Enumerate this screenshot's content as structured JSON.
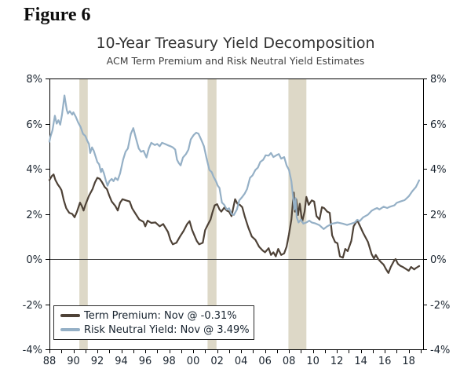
{
  "figure_label": "Figure 6",
  "colors": {
    "background": "#ffffff",
    "recession_band": "#ddd8c7",
    "axis": "#000000",
    "zero_line": "#3a3a3a",
    "tick_label": "#1b2530",
    "title": "#333333",
    "subtitle": "#404040",
    "legend_text": "#16222e",
    "term_premium": "#4e4237",
    "risk_neutral": "#95b0c6"
  },
  "chart_data": {
    "type": "line",
    "title": "10-Year Treasury Yield Decomposition",
    "subtitle": "ACM Term Premium and Risk Neutral Yield Estimates",
    "xlabel": "",
    "ylabel": "",
    "xlim": [
      1988,
      2019.2
    ],
    "ylim": [
      -4,
      8
    ],
    "grid": false,
    "zero_line": true,
    "legend_position": "bottom-left",
    "y_ticks": [
      8,
      6,
      4,
      2,
      0,
      -2,
      -4
    ],
    "y_tick_suffix": "%",
    "x_ticks": [
      {
        "year": 1988,
        "label": "88"
      },
      {
        "year": 1990,
        "label": "90"
      },
      {
        "year": 1992,
        "label": "92"
      },
      {
        "year": 1994,
        "label": "94"
      },
      {
        "year": 1996,
        "label": "96"
      },
      {
        "year": 1998,
        "label": "98"
      },
      {
        "year": 2000,
        "label": "00"
      },
      {
        "year": 2002,
        "label": "02"
      },
      {
        "year": 2004,
        "label": "04"
      },
      {
        "year": 2006,
        "label": "06"
      },
      {
        "year": 2008,
        "label": "08"
      },
      {
        "year": 2010,
        "label": "10"
      },
      {
        "year": 2012,
        "label": "12"
      },
      {
        "year": 2014,
        "label": "14"
      },
      {
        "year": 2016,
        "label": "16"
      },
      {
        "year": 2018,
        "label": "18"
      }
    ],
    "recession_bands": [
      [
        1990.5,
        1991.2
      ],
      [
        2001.2,
        2001.95
      ],
      [
        2007.95,
        2009.45
      ]
    ],
    "series": [
      {
        "name": "Term Premium",
        "legend_label": "Term Premium: Nov @ -0.31%",
        "color": "#4e4237",
        "points": [
          [
            1988.0,
            3.5
          ],
          [
            1988.2,
            3.68
          ],
          [
            1988.35,
            3.75
          ],
          [
            1988.5,
            3.5
          ],
          [
            1988.7,
            3.3
          ],
          [
            1988.9,
            3.15
          ],
          [
            1989.0,
            3.05
          ],
          [
            1989.2,
            2.6
          ],
          [
            1989.4,
            2.25
          ],
          [
            1989.65,
            2.05
          ],
          [
            1989.9,
            2.0
          ],
          [
            1990.1,
            1.85
          ],
          [
            1990.3,
            2.1
          ],
          [
            1990.55,
            2.5
          ],
          [
            1990.7,
            2.35
          ],
          [
            1990.85,
            2.15
          ],
          [
            1991.0,
            2.4
          ],
          [
            1991.3,
            2.8
          ],
          [
            1991.6,
            3.1
          ],
          [
            1991.8,
            3.4
          ],
          [
            1992.0,
            3.6
          ],
          [
            1992.2,
            3.55
          ],
          [
            1992.4,
            3.4
          ],
          [
            1992.6,
            3.2
          ],
          [
            1992.8,
            3.1
          ],
          [
            1993.0,
            2.8
          ],
          [
            1993.2,
            2.55
          ],
          [
            1993.5,
            2.35
          ],
          [
            1993.7,
            2.15
          ],
          [
            1993.9,
            2.5
          ],
          [
            1994.1,
            2.65
          ],
          [
            1994.4,
            2.6
          ],
          [
            1994.7,
            2.55
          ],
          [
            1994.9,
            2.25
          ],
          [
            1995.2,
            2.0
          ],
          [
            1995.5,
            1.75
          ],
          [
            1995.85,
            1.65
          ],
          [
            1996.0,
            1.45
          ],
          [
            1996.2,
            1.7
          ],
          [
            1996.5,
            1.6
          ],
          [
            1996.85,
            1.62
          ],
          [
            1997.2,
            1.45
          ],
          [
            1997.5,
            1.55
          ],
          [
            1997.9,
            1.2
          ],
          [
            1998.1,
            0.85
          ],
          [
            1998.3,
            0.65
          ],
          [
            1998.6,
            0.72
          ],
          [
            1998.9,
            1.0
          ],
          [
            1999.2,
            1.25
          ],
          [
            1999.5,
            1.55
          ],
          [
            1999.7,
            1.68
          ],
          [
            1999.9,
            1.3
          ],
          [
            2000.1,
            1.05
          ],
          [
            2000.3,
            0.8
          ],
          [
            2000.5,
            0.65
          ],
          [
            2000.8,
            0.72
          ],
          [
            2001.0,
            1.28
          ],
          [
            2001.2,
            1.5
          ],
          [
            2001.45,
            1.75
          ],
          [
            2001.6,
            2.05
          ],
          [
            2001.8,
            2.38
          ],
          [
            2002.0,
            2.43
          ],
          [
            2002.2,
            2.2
          ],
          [
            2002.35,
            2.1
          ],
          [
            2002.6,
            2.28
          ],
          [
            2002.8,
            2.15
          ],
          [
            2003.0,
            2.1
          ],
          [
            2003.2,
            1.9
          ],
          [
            2003.5,
            2.65
          ],
          [
            2003.7,
            2.45
          ],
          [
            2003.9,
            2.4
          ],
          [
            2004.1,
            2.3
          ],
          [
            2004.3,
            1.9
          ],
          [
            2004.6,
            1.4
          ],
          [
            2004.9,
            1.0
          ],
          [
            2005.2,
            0.85
          ],
          [
            2005.5,
            0.55
          ],
          [
            2005.8,
            0.38
          ],
          [
            2006.0,
            0.3
          ],
          [
            2006.3,
            0.48
          ],
          [
            2006.5,
            0.18
          ],
          [
            2006.7,
            0.3
          ],
          [
            2006.9,
            0.12
          ],
          [
            2007.1,
            0.45
          ],
          [
            2007.35,
            0.18
          ],
          [
            2007.6,
            0.25
          ],
          [
            2007.8,
            0.55
          ],
          [
            2008.0,
            1.1
          ],
          [
            2008.2,
            1.75
          ],
          [
            2008.4,
            2.95
          ],
          [
            2008.5,
            2.1
          ],
          [
            2008.6,
            2.65
          ],
          [
            2008.75,
            1.95
          ],
          [
            2008.9,
            2.45
          ],
          [
            2009.1,
            1.65
          ],
          [
            2009.3,
            2.1
          ],
          [
            2009.45,
            2.75
          ],
          [
            2009.65,
            2.4
          ],
          [
            2009.9,
            2.6
          ],
          [
            2010.1,
            2.55
          ],
          [
            2010.3,
            1.9
          ],
          [
            2010.55,
            1.75
          ],
          [
            2010.75,
            2.3
          ],
          [
            2010.95,
            2.25
          ],
          [
            2011.2,
            2.1
          ],
          [
            2011.4,
            2.05
          ],
          [
            2011.6,
            1.05
          ],
          [
            2011.85,
            0.75
          ],
          [
            2012.05,
            0.7
          ],
          [
            2012.25,
            0.12
          ],
          [
            2012.5,
            0.06
          ],
          [
            2012.7,
            0.45
          ],
          [
            2012.9,
            0.35
          ],
          [
            2013.2,
            0.8
          ],
          [
            2013.4,
            1.45
          ],
          [
            2013.7,
            1.72
          ],
          [
            2013.9,
            1.5
          ],
          [
            2014.2,
            1.15
          ],
          [
            2014.6,
            0.75
          ],
          [
            2014.9,
            0.22
          ],
          [
            2015.1,
            0.02
          ],
          [
            2015.25,
            0.18
          ],
          [
            2015.45,
            0.0
          ],
          [
            2015.65,
            -0.12
          ],
          [
            2015.9,
            -0.25
          ],
          [
            2016.1,
            -0.45
          ],
          [
            2016.3,
            -0.62
          ],
          [
            2016.5,
            -0.35
          ],
          [
            2016.8,
            -0.05
          ],
          [
            2016.9,
            0.0
          ],
          [
            2017.1,
            -0.22
          ],
          [
            2017.3,
            -0.3
          ],
          [
            2017.5,
            -0.35
          ],
          [
            2017.8,
            -0.45
          ],
          [
            2018.0,
            -0.52
          ],
          [
            2018.2,
            -0.35
          ],
          [
            2018.45,
            -0.46
          ],
          [
            2018.6,
            -0.4
          ],
          [
            2018.87,
            -0.31
          ]
        ]
      },
      {
        "name": "Risk Neutral Yield",
        "legend_label": "Risk Neutral Yield: Nov @ 3.49%",
        "color": "#95b0c6",
        "points": [
          [
            1988.0,
            5.2
          ],
          [
            1988.1,
            5.45
          ],
          [
            1988.25,
            5.7
          ],
          [
            1988.45,
            6.35
          ],
          [
            1988.6,
            6.0
          ],
          [
            1988.75,
            6.15
          ],
          [
            1988.9,
            5.95
          ],
          [
            1989.05,
            6.4
          ],
          [
            1989.25,
            7.25
          ],
          [
            1989.45,
            6.6
          ],
          [
            1989.55,
            6.45
          ],
          [
            1989.7,
            6.55
          ],
          [
            1989.9,
            6.4
          ],
          [
            1990.0,
            6.5
          ],
          [
            1990.2,
            6.3
          ],
          [
            1990.4,
            6.05
          ],
          [
            1990.6,
            5.85
          ],
          [
            1990.8,
            5.55
          ],
          [
            1991.0,
            5.45
          ],
          [
            1991.15,
            5.25
          ],
          [
            1991.3,
            5.1
          ],
          [
            1991.4,
            4.7
          ],
          [
            1991.55,
            4.95
          ],
          [
            1991.7,
            4.8
          ],
          [
            1991.85,
            4.55
          ],
          [
            1992.0,
            4.3
          ],
          [
            1992.15,
            4.2
          ],
          [
            1992.3,
            3.85
          ],
          [
            1992.4,
            4.0
          ],
          [
            1992.55,
            3.8
          ],
          [
            1992.7,
            3.5
          ],
          [
            1992.85,
            3.25
          ],
          [
            1993.0,
            3.45
          ],
          [
            1993.2,
            3.55
          ],
          [
            1993.35,
            3.45
          ],
          [
            1993.5,
            3.6
          ],
          [
            1993.7,
            3.5
          ],
          [
            1993.9,
            3.8
          ],
          [
            1994.15,
            4.4
          ],
          [
            1994.35,
            4.75
          ],
          [
            1994.55,
            4.9
          ],
          [
            1994.8,
            5.55
          ],
          [
            1995.0,
            5.8
          ],
          [
            1995.2,
            5.4
          ],
          [
            1995.45,
            4.9
          ],
          [
            1995.65,
            4.75
          ],
          [
            1995.85,
            4.8
          ],
          [
            1996.1,
            4.5
          ],
          [
            1996.3,
            4.9
          ],
          [
            1996.5,
            5.15
          ],
          [
            1996.8,
            5.05
          ],
          [
            1997.0,
            5.1
          ],
          [
            1997.2,
            5.0
          ],
          [
            1997.4,
            5.15
          ],
          [
            1997.65,
            5.1
          ],
          [
            1997.85,
            5.05
          ],
          [
            1998.1,
            5.0
          ],
          [
            1998.3,
            4.95
          ],
          [
            1998.5,
            4.85
          ],
          [
            1998.65,
            4.4
          ],
          [
            1998.8,
            4.25
          ],
          [
            1998.95,
            4.15
          ],
          [
            1999.15,
            4.5
          ],
          [
            1999.4,
            4.65
          ],
          [
            1999.6,
            4.85
          ],
          [
            1999.8,
            5.3
          ],
          [
            2000.05,
            5.5
          ],
          [
            2000.25,
            5.6
          ],
          [
            2000.45,
            5.55
          ],
          [
            2000.7,
            5.25
          ],
          [
            2000.9,
            5.0
          ],
          [
            2001.1,
            4.5
          ],
          [
            2001.35,
            3.95
          ],
          [
            2001.55,
            3.85
          ],
          [
            2001.7,
            3.65
          ],
          [
            2001.9,
            3.45
          ],
          [
            2002.05,
            3.25
          ],
          [
            2002.2,
            3.15
          ],
          [
            2002.4,
            2.5
          ],
          [
            2002.6,
            2.4
          ],
          [
            2002.8,
            2.2
          ],
          [
            2003.0,
            2.25
          ],
          [
            2003.2,
            2.0
          ],
          [
            2003.4,
            1.95
          ],
          [
            2003.65,
            2.2
          ],
          [
            2003.85,
            2.6
          ],
          [
            2004.1,
            2.75
          ],
          [
            2004.3,
            2.9
          ],
          [
            2004.5,
            3.1
          ],
          [
            2004.75,
            3.6
          ],
          [
            2004.95,
            3.7
          ],
          [
            2005.2,
            3.95
          ],
          [
            2005.4,
            4.05
          ],
          [
            2005.6,
            4.3
          ],
          [
            2005.85,
            4.4
          ],
          [
            2006.05,
            4.6
          ],
          [
            2006.3,
            4.58
          ],
          [
            2006.5,
            4.7
          ],
          [
            2006.7,
            4.52
          ],
          [
            2006.95,
            4.6
          ],
          [
            2007.15,
            4.65
          ],
          [
            2007.35,
            4.45
          ],
          [
            2007.6,
            4.52
          ],
          [
            2007.8,
            4.15
          ],
          [
            2008.0,
            3.95
          ],
          [
            2008.2,
            3.45
          ],
          [
            2008.35,
            2.7
          ],
          [
            2008.45,
            2.2
          ],
          [
            2008.55,
            2.7
          ],
          [
            2008.65,
            1.85
          ],
          [
            2008.8,
            1.62
          ],
          [
            2009.0,
            1.75
          ],
          [
            2009.2,
            1.57
          ],
          [
            2009.45,
            1.62
          ],
          [
            2009.7,
            1.7
          ],
          [
            2009.9,
            1.62
          ],
          [
            2010.2,
            1.58
          ],
          [
            2010.55,
            1.5
          ],
          [
            2010.9,
            1.33
          ],
          [
            2011.2,
            1.45
          ],
          [
            2011.6,
            1.57
          ],
          [
            2011.9,
            1.6
          ],
          [
            2012.05,
            1.62
          ],
          [
            2012.5,
            1.57
          ],
          [
            2012.85,
            1.51
          ],
          [
            2013.2,
            1.57
          ],
          [
            2013.5,
            1.62
          ],
          [
            2013.7,
            1.74
          ],
          [
            2013.9,
            1.68
          ],
          [
            2014.2,
            1.85
          ],
          [
            2014.6,
            1.97
          ],
          [
            2014.9,
            2.14
          ],
          [
            2015.1,
            2.2
          ],
          [
            2015.35,
            2.26
          ],
          [
            2015.55,
            2.2
          ],
          [
            2015.9,
            2.32
          ],
          [
            2016.2,
            2.26
          ],
          [
            2016.45,
            2.32
          ],
          [
            2016.8,
            2.38
          ],
          [
            2017.0,
            2.49
          ],
          [
            2017.3,
            2.55
          ],
          [
            2017.65,
            2.61
          ],
          [
            2018.0,
            2.78
          ],
          [
            2018.3,
            3.01
          ],
          [
            2018.6,
            3.19
          ],
          [
            2018.87,
            3.49
          ]
        ]
      }
    ]
  }
}
